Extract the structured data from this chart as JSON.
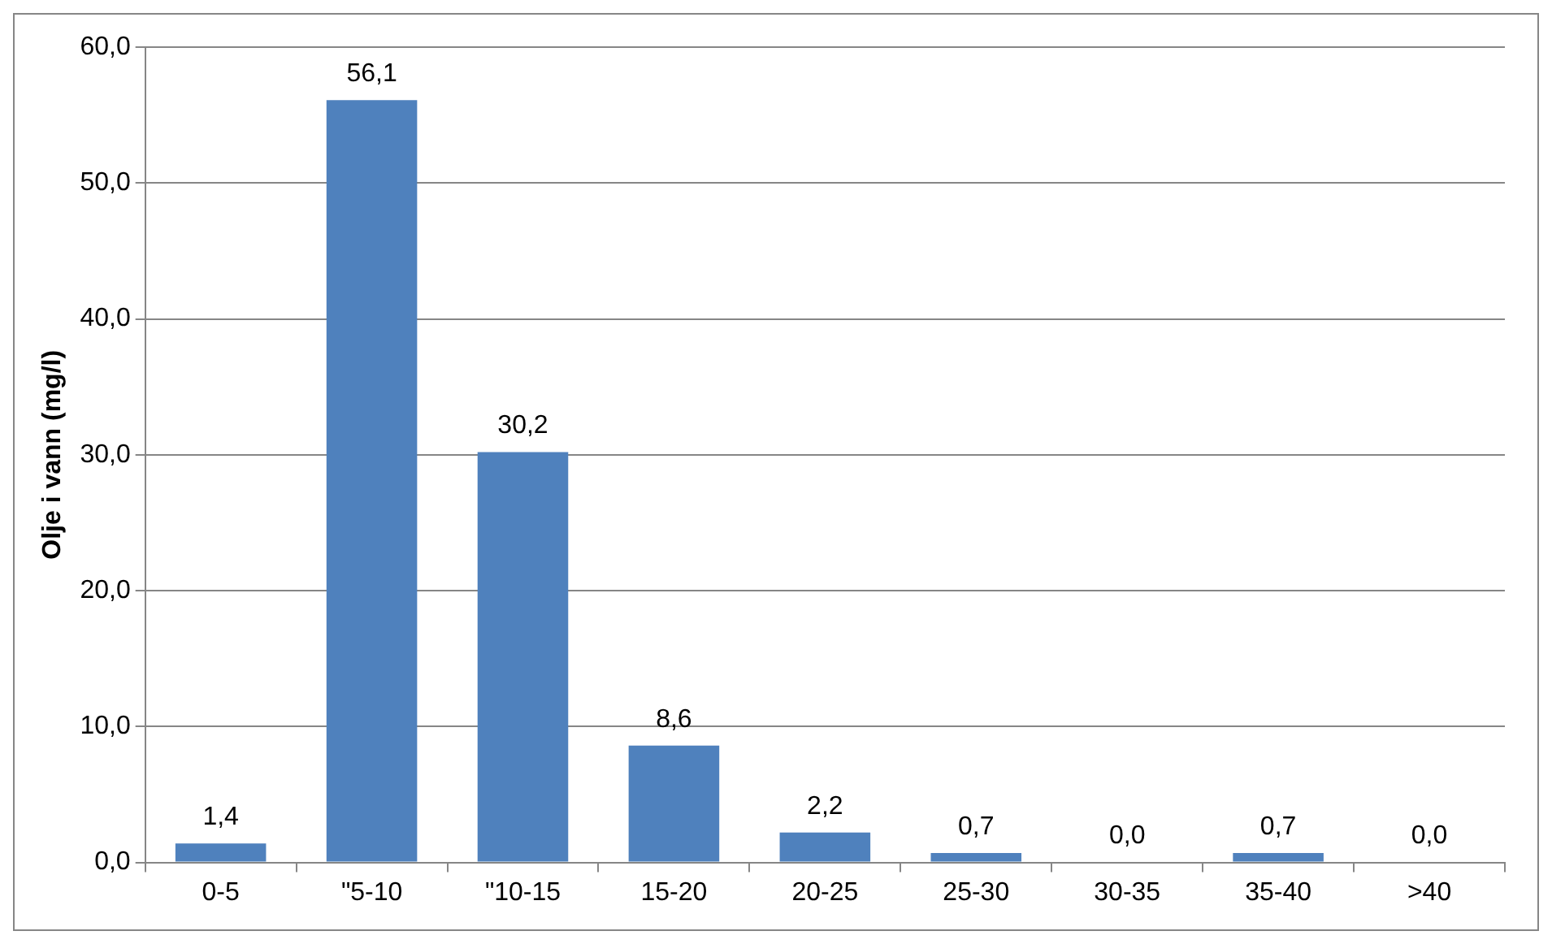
{
  "chart_data": {
    "type": "bar",
    "ylabel": "Olje i vann (mg/l)",
    "categories": [
      "0-5",
      "\"5-10",
      "\"10-15",
      "15-20",
      "20-25",
      "25-30",
      "30-35",
      "35-40",
      ">40"
    ],
    "values": [
      1.4,
      56.1,
      30.2,
      8.6,
      2.2,
      0.7,
      0.0,
      0.7,
      0.0
    ],
    "value_labels": [
      "1,4",
      "56,1",
      "30,2",
      "8,6",
      "2,2",
      "0,7",
      "0,0",
      "0,7",
      "0,0"
    ],
    "color": "#4f81bd",
    "ylim": [
      0,
      60
    ],
    "yticks": [
      {
        "value": 0,
        "label": "0,0"
      },
      {
        "value": 10,
        "label": "10,0"
      },
      {
        "value": 20,
        "label": "20,0"
      },
      {
        "value": 30,
        "label": "30,0"
      },
      {
        "value": 40,
        "label": "40,0"
      },
      {
        "value": 50,
        "label": "50,0"
      },
      {
        "value": 60,
        "label": "60,0"
      }
    ],
    "grid": "y",
    "legend": false
  }
}
